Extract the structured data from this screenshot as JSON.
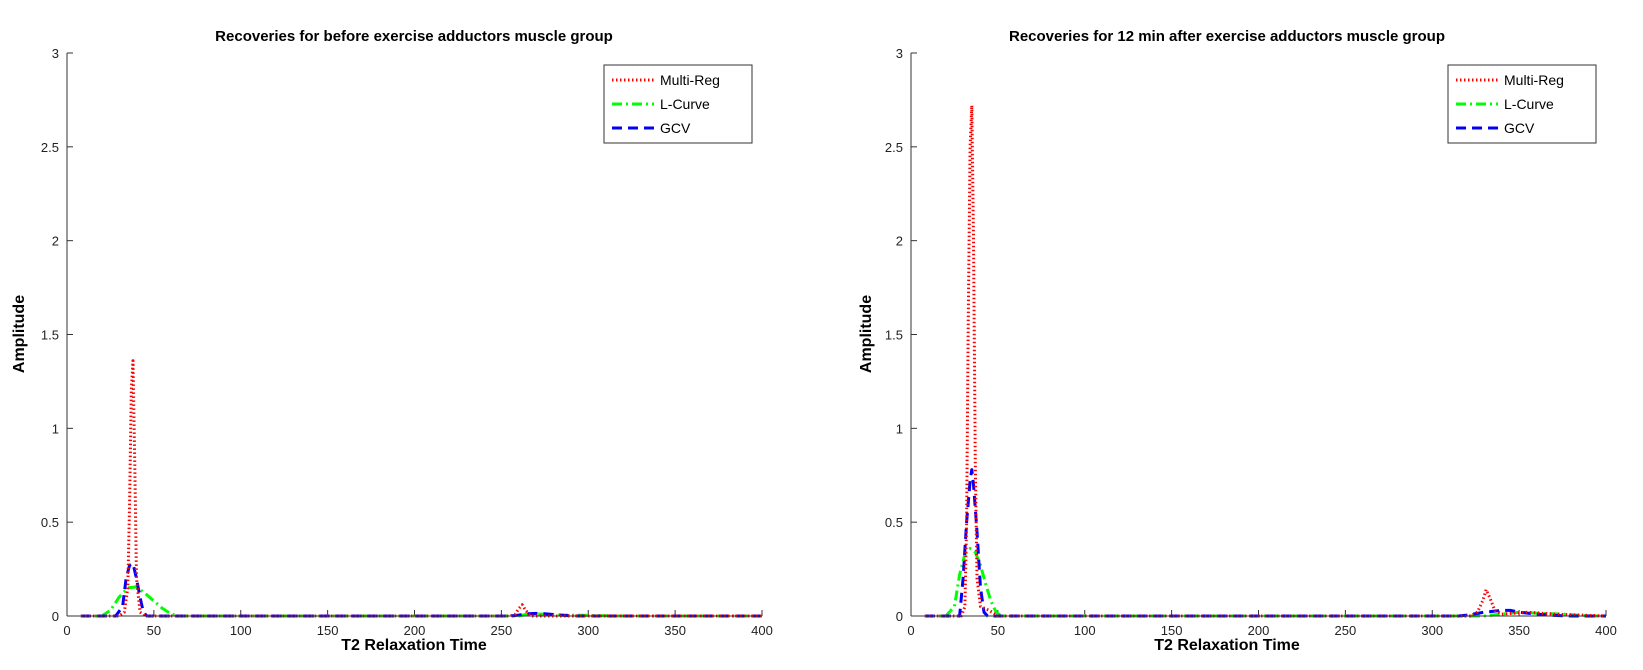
{
  "chart_data": [
    {
      "type": "line",
      "title": "Recoveries for before exercise adductors muscle group",
      "xlabel": "T2 Relaxation Time",
      "ylabel": "Amplitude",
      "xlim": [
        0,
        400
      ],
      "ylim": [
        0,
        3
      ],
      "xticks": [
        0,
        50,
        100,
        150,
        200,
        250,
        300,
        350,
        400
      ],
      "yticks": [
        0,
        0.5,
        1,
        1.5,
        2,
        2.5,
        3
      ],
      "xtick_labels": [
        "0",
        "50",
        "100",
        "150",
        "200",
        "250",
        "300",
        "350",
        "400"
      ],
      "ytick_labels": [
        "0",
        "0.5",
        "1",
        "1.5",
        "2",
        "2.5",
        "3"
      ],
      "grid": false,
      "legend_position": "top-right",
      "series": [
        {
          "name": "Multi-Reg",
          "color": "#ff0000",
          "style": "dotted",
          "points": [
            [
              8,
              0
            ],
            [
              30,
              0
            ],
            [
              33,
              0.02
            ],
            [
              35,
              0.15
            ],
            [
              36,
              0.6
            ],
            [
              37,
              1.2
            ],
            [
              38,
              1.36
            ],
            [
              39,
              0.8
            ],
            [
              40,
              0.2
            ],
            [
              42,
              0.02
            ],
            [
              45,
              0
            ],
            [
              255,
              0
            ],
            [
              258,
              0.01
            ],
            [
              260,
              0.04
            ],
            [
              262,
              0.06
            ],
            [
              264,
              0.03
            ],
            [
              267,
              0
            ],
            [
              400,
              0
            ]
          ]
        },
        {
          "name": "L-Curve",
          "color": "#00ff00",
          "style": "dashdot",
          "points": [
            [
              8,
              0
            ],
            [
              20,
              0
            ],
            [
              25,
              0.03
            ],
            [
              30,
              0.1
            ],
            [
              35,
              0.15
            ],
            [
              40,
              0.155
            ],
            [
              45,
              0.12
            ],
            [
              50,
              0.08
            ],
            [
              55,
              0.04
            ],
            [
              60,
              0.01
            ],
            [
              65,
              0
            ],
            [
              260,
              0
            ],
            [
              265,
              0.01
            ],
            [
              275,
              0.01
            ],
            [
              285,
              0.005
            ],
            [
              300,
              0.003
            ],
            [
              320,
              0
            ],
            [
              400,
              0
            ]
          ]
        },
        {
          "name": "GCV",
          "color": "#0000ff",
          "style": "dashed",
          "points": [
            [
              8,
              0
            ],
            [
              28,
              0
            ],
            [
              32,
              0.05
            ],
            [
              34,
              0.2
            ],
            [
              36,
              0.27
            ],
            [
              38,
              0.28
            ],
            [
              40,
              0.2
            ],
            [
              42,
              0.1
            ],
            [
              44,
              0.02
            ],
            [
              46,
              0
            ],
            [
              255,
              0
            ],
            [
              260,
              0.005
            ],
            [
              265,
              0.012
            ],
            [
              270,
              0.014
            ],
            [
              275,
              0.012
            ],
            [
              280,
              0.008
            ],
            [
              285,
              0.004
            ],
            [
              290,
              0.001
            ],
            [
              295,
              0
            ],
            [
              400,
              0
            ]
          ]
        }
      ]
    },
    {
      "type": "line",
      "title": "Recoveries for 12 min after exercise adductors muscle group",
      "xlabel": "T2 Relaxation Time",
      "ylabel": "Amplitude",
      "xlim": [
        0,
        400
      ],
      "ylim": [
        0,
        3
      ],
      "xticks": [
        0,
        50,
        100,
        150,
        200,
        250,
        300,
        350,
        400
      ],
      "yticks": [
        0,
        0.5,
        1,
        1.5,
        2,
        2.5,
        3
      ],
      "xtick_labels": [
        "0",
        "50",
        "100",
        "150",
        "200",
        "250",
        "300",
        "350",
        "400"
      ],
      "ytick_labels": [
        "0",
        "0.5",
        "1",
        "1.5",
        "2",
        "2.5",
        "3"
      ],
      "grid": false,
      "legend_position": "top-right",
      "series": [
        {
          "name": "Multi-Reg",
          "color": "#ff0000",
          "style": "dotted",
          "points": [
            [
              8,
              0
            ],
            [
              29,
              0
            ],
            [
              31,
              0.05
            ],
            [
              32,
              0.5
            ],
            [
              33,
              1.6
            ],
            [
              34,
              2.5
            ],
            [
              35,
              2.72
            ],
            [
              36,
              2.0
            ],
            [
              37,
              0.8
            ],
            [
              38,
              0.2
            ],
            [
              40,
              0.05
            ],
            [
              45,
              0.03
            ],
            [
              50,
              0
            ],
            [
              322,
              0
            ],
            [
              326,
              0.02
            ],
            [
              329,
              0.08
            ],
            [
              331,
              0.14
            ],
            [
              333,
              0.1
            ],
            [
              336,
              0.03
            ],
            [
              340,
              0.01
            ],
            [
              355,
              0.02
            ],
            [
              370,
              0.01
            ],
            [
              400,
              0
            ]
          ]
        },
        {
          "name": "L-Curve",
          "color": "#00ff00",
          "style": "dashdot",
          "points": [
            [
              8,
              0
            ],
            [
              20,
              0
            ],
            [
              25,
              0.05
            ],
            [
              28,
              0.22
            ],
            [
              31,
              0.33
            ],
            [
              34,
              0.36
            ],
            [
              37,
              0.34
            ],
            [
              40,
              0.27
            ],
            [
              43,
              0.17
            ],
            [
              46,
              0.08
            ],
            [
              49,
              0.02
            ],
            [
              52,
              0
            ],
            [
              330,
              0
            ],
            [
              340,
              0.01
            ],
            [
              350,
              0.02
            ],
            [
              360,
              0.015
            ],
            [
              375,
              0.01
            ],
            [
              390,
              0
            ],
            [
              400,
              0
            ]
          ]
        },
        {
          "name": "GCV",
          "color": "#0000ff",
          "style": "dashed",
          "points": [
            [
              8,
              0
            ],
            [
              28,
              0
            ],
            [
              30,
              0.2
            ],
            [
              32,
              0.5
            ],
            [
              34,
              0.72
            ],
            [
              35,
              0.78
            ],
            [
              36,
              0.7
            ],
            [
              38,
              0.45
            ],
            [
              40,
              0.15
            ],
            [
              42,
              0.02
            ],
            [
              44,
              0
            ],
            [
              315,
              0
            ],
            [
              320,
              0.005
            ],
            [
              330,
              0.02
            ],
            [
              340,
              0.03
            ],
            [
              345,
              0.03
            ],
            [
              350,
              0.02
            ],
            [
              360,
              0.01
            ],
            [
              370,
              0.003
            ],
            [
              380,
              0
            ],
            [
              400,
              0
            ]
          ]
        }
      ]
    }
  ]
}
